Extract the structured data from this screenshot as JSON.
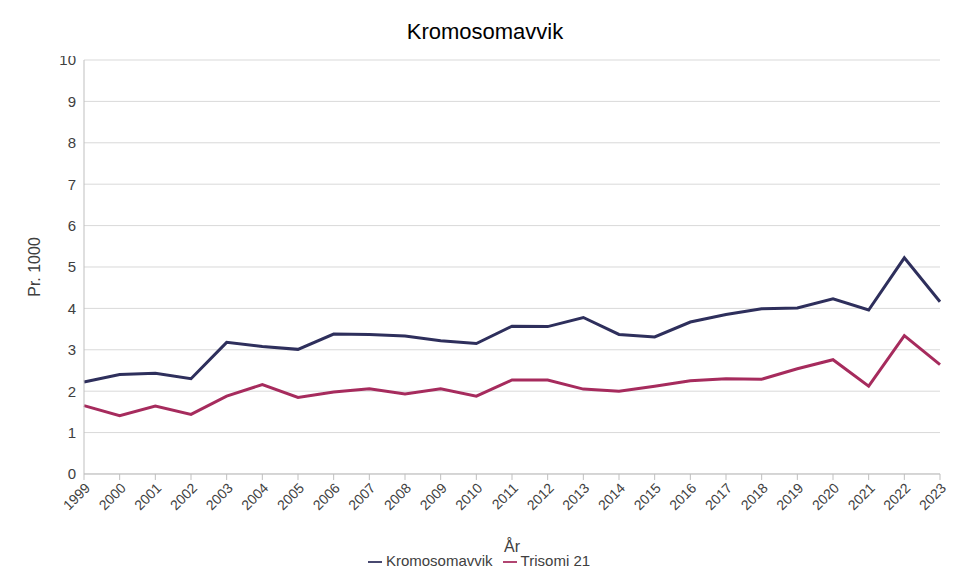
{
  "chart_data": {
    "type": "line",
    "title": "Kromosomavvik",
    "x_label": "År",
    "y_label": "Pr. 1000",
    "categories": [
      "1999",
      "2000",
      "2001",
      "2002",
      "2003",
      "2004",
      "2005",
      "2006",
      "2007",
      "2008",
      "2009",
      "2010",
      "2011",
      "2012",
      "2013",
      "2014",
      "2015",
      "2016",
      "2017",
      "2018",
      "2019",
      "2020",
      "2021",
      "2022",
      "2023"
    ],
    "series": [
      {
        "name": "Kromosomavvik",
        "color": "#2e2f5c",
        "values": [
          2.22,
          2.4,
          2.43,
          2.3,
          3.18,
          3.08,
          3.01,
          3.38,
          3.37,
          3.33,
          3.22,
          3.15,
          3.57,
          3.56,
          3.78,
          3.37,
          3.31,
          3.67,
          3.85,
          3.99,
          4.01,
          4.23,
          3.96,
          5.22,
          4.16
        ]
      },
      {
        "name": "Trisomi 21",
        "color": "#a62b5d",
        "values": [
          1.65,
          1.41,
          1.64,
          1.44,
          1.88,
          2.16,
          1.85,
          1.98,
          2.06,
          1.93,
          2.06,
          1.88,
          2.27,
          2.27,
          2.05,
          2.0,
          2.12,
          2.25,
          2.3,
          2.29,
          2.54,
          2.76,
          2.12,
          3.34,
          2.64
        ]
      }
    ],
    "ylim": [
      0,
      10
    ],
    "yticks": [
      0,
      1,
      2,
      3,
      4,
      5,
      6,
      7,
      8,
      9,
      10
    ],
    "grid": true,
    "legend": "bottom"
  }
}
